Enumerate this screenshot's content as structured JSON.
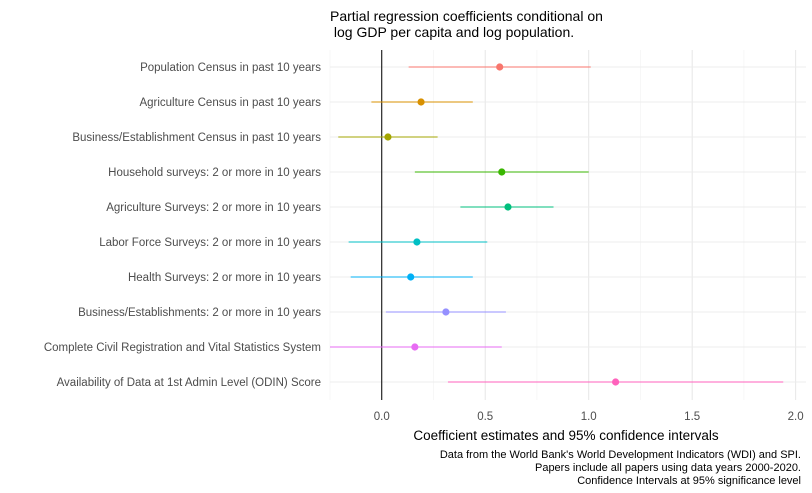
{
  "chart_data": {
    "type": "scatter",
    "title_lines": [
      "Partial regression coefficients conditional on",
      " log GDP per capita and log population."
    ],
    "xlabel": "Coefficient estimates and 95% confidence intervals",
    "ylabel": "",
    "xlim": [
      -0.25,
      2.05
    ],
    "xticks": [
      0.0,
      0.5,
      1.0,
      1.5,
      2.0
    ],
    "xtick_labels": [
      "0.0",
      "0.5",
      "1.0",
      "1.5",
      "2.0"
    ],
    "reference_line_x": 0,
    "grid": true,
    "legend": "none",
    "caption_lines": [
      "Data from the World Bank's World Development Indicators (WDI) and SPI.",
      "Papers include all papers using data years 2000-2020.",
      "Confidence Intervals at 95% significance level"
    ],
    "series": [
      {
        "name": "Population Census in past 10 years",
        "estimate": 0.57,
        "lower": 0.13,
        "upper": 1.01,
        "color": "#F8766D"
      },
      {
        "name": "Agriculture Census  in past 10 years",
        "estimate": 0.19,
        "lower": -0.05,
        "upper": 0.44,
        "color": "#D89000"
      },
      {
        "name": "Business/Establishment Census in past 10 years",
        "estimate": 0.03,
        "lower": -0.21,
        "upper": 0.27,
        "color": "#A3A500"
      },
      {
        "name": "Household surveys: 2 or more in 10 years",
        "estimate": 0.58,
        "lower": 0.16,
        "upper": 1.0,
        "color": "#39B600"
      },
      {
        "name": "Agriculture Surveys: 2 or more in 10 years",
        "estimate": 0.61,
        "lower": 0.38,
        "upper": 0.83,
        "color": "#00BF7D"
      },
      {
        "name": "Labor Force Surveys: 2 or more in 10 years",
        "estimate": 0.17,
        "lower": -0.16,
        "upper": 0.51,
        "color": "#00BFC4"
      },
      {
        "name": "Health Surveys: 2 or more in 10 years",
        "estimate": 0.14,
        "lower": -0.15,
        "upper": 0.44,
        "color": "#00B0F6"
      },
      {
        "name": "Business/Establishments: 2 or more in 10 years",
        "estimate": 0.31,
        "lower": 0.02,
        "upper": 0.6,
        "color": "#9590FF"
      },
      {
        "name": "Complete Civil Registration and Vital Statistics System",
        "estimate": 0.16,
        "lower": -0.25,
        "upper": 0.58,
        "color": "#E76BF3"
      },
      {
        "name": "Availability of Data at 1st Admin Level (ODIN) Score",
        "estimate": 1.13,
        "lower": 0.32,
        "upper": 1.94,
        "color": "#FF62BC"
      }
    ]
  }
}
